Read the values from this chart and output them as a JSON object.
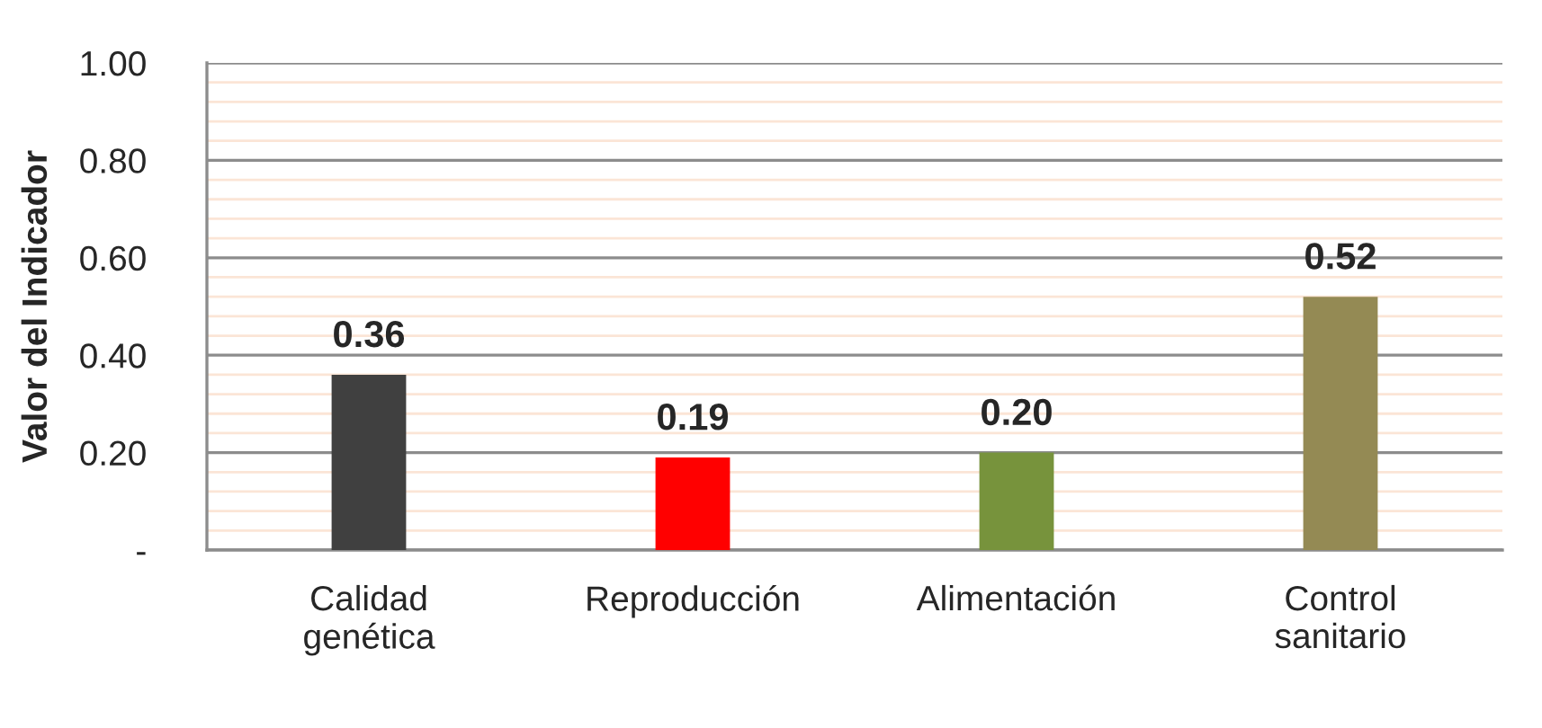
{
  "chart_data": {
    "type": "bar",
    "ylabel": "Valor del Indicador",
    "categories": [
      "Calidad genética",
      "Reproducción",
      "Alimentación",
      "Control sanitario"
    ],
    "values": [
      0.36,
      0.19,
      0.2,
      0.52
    ],
    "colors": [
      "#404040",
      "#ff0000",
      "#77933c",
      "#948a54"
    ],
    "ylim": [
      0,
      1.0
    ],
    "yticks": [
      {
        "value": 0,
        "label": "-"
      },
      {
        "value": 0.04,
        "label": null
      },
      {
        "value": 0.08,
        "label": null
      },
      {
        "value": 0.12,
        "label": null
      },
      {
        "value": 0.16,
        "label": null
      },
      {
        "value": 0.2,
        "label": "0.20"
      },
      {
        "value": 0.24,
        "label": null
      },
      {
        "value": 0.28,
        "label": null
      },
      {
        "value": 0.32,
        "label": null
      },
      {
        "value": 0.36,
        "label": null
      },
      {
        "value": 0.4,
        "label": "0.40"
      },
      {
        "value": 0.44,
        "label": null
      },
      {
        "value": 0.48,
        "label": null
      },
      {
        "value": 0.52,
        "label": null
      },
      {
        "value": 0.56,
        "label": null
      },
      {
        "value": 0.6,
        "label": "0.60"
      },
      {
        "value": 0.64,
        "label": null
      },
      {
        "value": 0.68,
        "label": null
      },
      {
        "value": 0.72,
        "label": null
      },
      {
        "value": 0.76,
        "label": null
      },
      {
        "value": 0.8,
        "label": "0.80"
      },
      {
        "value": 0.84,
        "label": null
      },
      {
        "value": 0.88,
        "label": null
      },
      {
        "value": 0.92,
        "label": null
      },
      {
        "value": 0.96,
        "label": null
      },
      {
        "value": 1.0,
        "label": "1.00"
      }
    ],
    "grid": "y",
    "value_labels": [
      "0.36",
      "0.19",
      "0.20",
      "0.52"
    ],
    "legend": false
  }
}
